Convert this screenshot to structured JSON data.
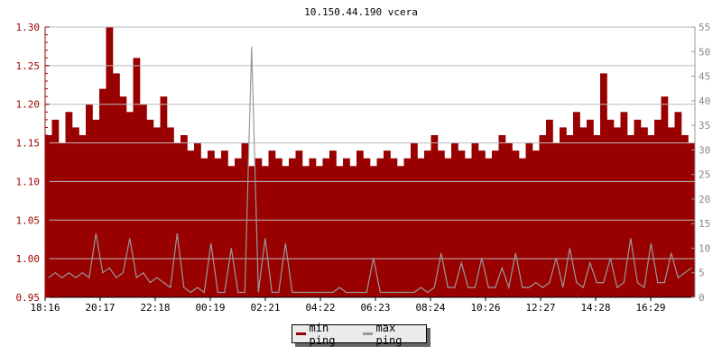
{
  "chart_data": {
    "type": "bar",
    "title": "10.150.44.190 vcera",
    "x_tick_labels": [
      "18:16",
      "20:17",
      "22:18",
      "00:19",
      "02:21",
      "04:22",
      "06:23",
      "08:24",
      "10:26",
      "12:27",
      "14:28",
      "16:29"
    ],
    "y_left": {
      "range": [
        0.95,
        1.3
      ],
      "ticks": [
        "0.95",
        "1.00",
        "1.05",
        "1.10",
        "1.15",
        "1.20",
        "1.25",
        "1.30"
      ]
    },
    "y_right": {
      "range": [
        0,
        55
      ],
      "ticks": [
        "0",
        "5",
        "10",
        "15",
        "20",
        "25",
        "30",
        "35",
        "40",
        "45",
        "50",
        "55"
      ]
    },
    "grid": true,
    "legend_placement": "bottom",
    "series": [
      {
        "name": "min ping",
        "axis": "left",
        "color": "#990000",
        "values": [
          1.16,
          1.18,
          1.15,
          1.19,
          1.17,
          1.16,
          1.2,
          1.18,
          1.22,
          1.3,
          1.24,
          1.21,
          1.19,
          1.26,
          1.2,
          1.18,
          1.17,
          1.21,
          1.17,
          1.15,
          1.16,
          1.14,
          1.15,
          1.13,
          1.14,
          1.13,
          1.14,
          1.12,
          1.13,
          1.15,
          1.12,
          1.13,
          1.12,
          1.14,
          1.13,
          1.12,
          1.13,
          1.14,
          1.12,
          1.13,
          1.12,
          1.13,
          1.14,
          1.12,
          1.13,
          1.12,
          1.14,
          1.13,
          1.12,
          1.13,
          1.14,
          1.13,
          1.12,
          1.13,
          1.15,
          1.13,
          1.14,
          1.16,
          1.14,
          1.13,
          1.15,
          1.14,
          1.13,
          1.15,
          1.14,
          1.13,
          1.14,
          1.16,
          1.15,
          1.14,
          1.13,
          1.15,
          1.14,
          1.16,
          1.18,
          1.15,
          1.17,
          1.16,
          1.19,
          1.17,
          1.18,
          1.16,
          1.24,
          1.18,
          1.17,
          1.19,
          1.16,
          1.18,
          1.17,
          1.16,
          1.18,
          1.21,
          1.17,
          1.19,
          1.16,
          1.15
        ]
      },
      {
        "name": "max ping",
        "axis": "right",
        "color": "#999999",
        "values": [
          4,
          5,
          4,
          5,
          4,
          5,
          4,
          13,
          5,
          6,
          4,
          5,
          12,
          4,
          5,
          3,
          4,
          3,
          2,
          13,
          2,
          1,
          2,
          1,
          11,
          1,
          1,
          10,
          1,
          1,
          51,
          1,
          12,
          1,
          1,
          11,
          1,
          1,
          1,
          1,
          1,
          1,
          1,
          2,
          1,
          1,
          1,
          1,
          8,
          1,
          1,
          1,
          1,
          1,
          1,
          2,
          1,
          2,
          9,
          2,
          2,
          7,
          2,
          2,
          8,
          2,
          2,
          6,
          2,
          9,
          2,
          2,
          3,
          2,
          3,
          8,
          2,
          10,
          3,
          2,
          7,
          3,
          3,
          8,
          2,
          3,
          12,
          3,
          2,
          11,
          3,
          3,
          9,
          4,
          5,
          6
        ]
      }
    ]
  }
}
